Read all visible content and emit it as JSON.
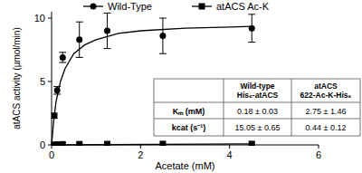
{
  "chart_data": {
    "type": "scatter",
    "x_label": "Acetate (mM)",
    "y_label": "atACS activity (µmol/min)",
    "xlim": [
      0,
      6
    ],
    "xticks": [
      0,
      2,
      4,
      6
    ],
    "ylim": [
      0,
      10.5
    ],
    "yticks": [
      0,
      5,
      10
    ],
    "legend": "top",
    "series": [
      {
        "name": "Wild-Type",
        "color": "#000000",
        "marker": "circle",
        "x": [
          0.0625,
          0.125,
          0.25,
          0.625,
          1.25,
          2.5,
          4.5
        ],
        "values": [
          2.3,
          4.3,
          6.9,
          8.3,
          9.0,
          8.6,
          9.2
        ],
        "errors": [
          0.2,
          0.3,
          0.4,
          1.4,
          1.4,
          1.4,
          1.1
        ],
        "fit": {
          "x": [
            0,
            0.05,
            0.1,
            0.2,
            0.3,
            0.5,
            0.75,
            1,
            1.5,
            2,
            3,
            4,
            4.5
          ],
          "values": [
            0,
            2.0,
            3.4,
            5.0,
            6.0,
            7.2,
            7.9,
            8.3,
            8.8,
            9.0,
            9.2,
            9.3,
            9.35
          ]
        }
      },
      {
        "name": "atACS Ac-K",
        "color": "#000000",
        "marker": "square",
        "x": [
          0.0625,
          0.125,
          0.25,
          0.625,
          1.25,
          2.5,
          4.5
        ],
        "values": [
          0.02,
          0.03,
          0.05,
          0.06,
          0.07,
          0.08,
          0.08
        ],
        "fit": {
          "x": [
            0,
            4.5
          ],
          "values": [
            0,
            0.08
          ]
        }
      }
    ],
    "table": {
      "header": [
        "Wild-type His₆-atACS",
        "atACS 622-Ac-K-His₆"
      ],
      "rows": [
        [
          "Kₘ (mM)",
          "0.18 ± 0.03",
          "2.75 ± 1.46"
        ],
        [
          "kcat (s⁻¹)",
          "15.05 ± 0.65",
          "0.44 ± 0.12"
        ]
      ]
    }
  }
}
